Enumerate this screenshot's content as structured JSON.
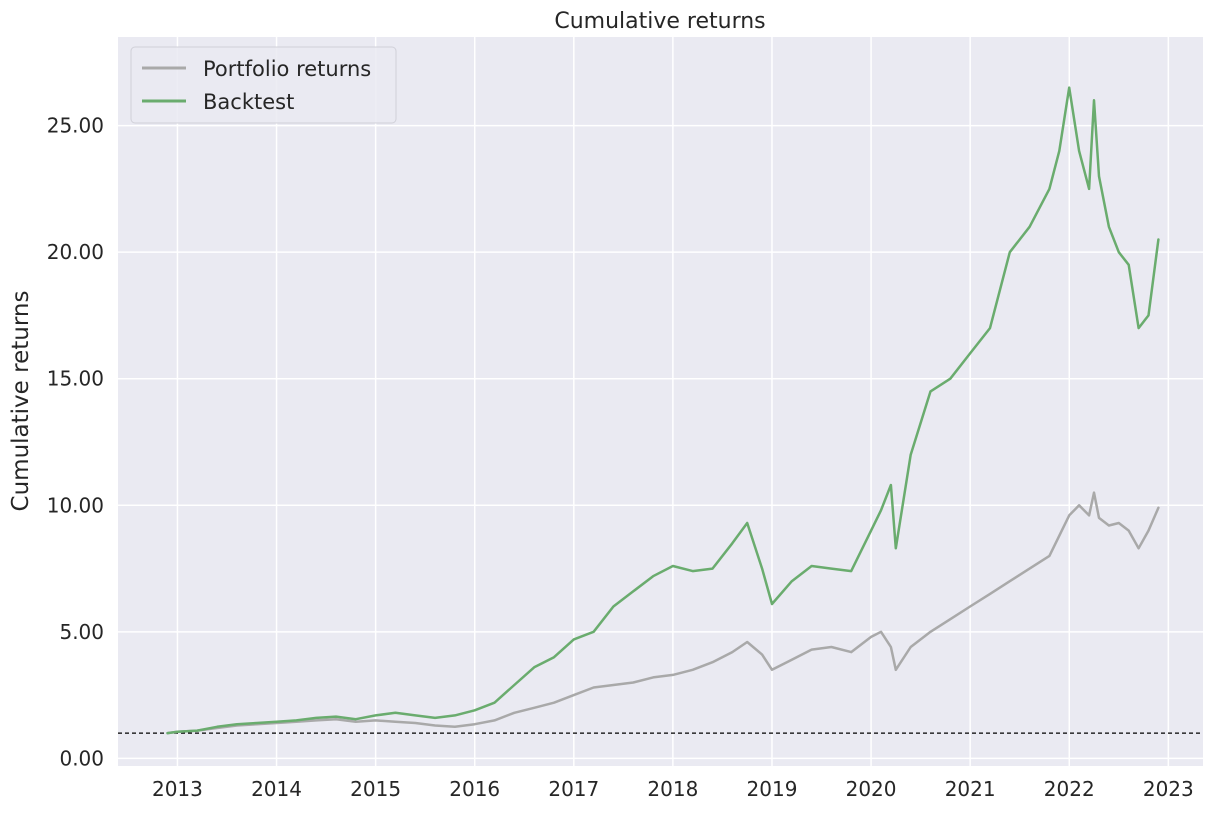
{
  "chart_data": {
    "type": "line",
    "title": "Cumulative returns",
    "xlabel": "",
    "ylabel": "Cumulative returns",
    "x_ticks": [
      "2013",
      "2014",
      "2015",
      "2016",
      "2017",
      "2018",
      "2019",
      "2020",
      "2021",
      "2022",
      "2023"
    ],
    "y_ticks": [
      "0.00",
      "5.00",
      "10.00",
      "15.00",
      "20.00",
      "25.00"
    ],
    "xlim": [
      2012.4,
      2023.35
    ],
    "ylim": [
      -0.3,
      28.5
    ],
    "grid": true,
    "legend_position": "top-left",
    "reference_line": {
      "y": 1.0,
      "style": "dashed",
      "color": "#000000"
    },
    "x": [
      2012.9,
      2013.0,
      2013.2,
      2013.4,
      2013.6,
      2013.8,
      2014.0,
      2014.2,
      2014.4,
      2014.6,
      2014.8,
      2015.0,
      2015.2,
      2015.4,
      2015.6,
      2015.8,
      2016.0,
      2016.2,
      2016.4,
      2016.6,
      2016.8,
      2017.0,
      2017.2,
      2017.4,
      2017.6,
      2017.8,
      2018.0,
      2018.2,
      2018.4,
      2018.6,
      2018.75,
      2018.9,
      2019.0,
      2019.2,
      2019.4,
      2019.6,
      2019.8,
      2020.0,
      2020.1,
      2020.2,
      2020.25,
      2020.4,
      2020.6,
      2020.8,
      2021.0,
      2021.2,
      2021.4,
      2021.6,
      2021.8,
      2021.9,
      2022.0,
      2022.1,
      2022.2,
      2022.25,
      2022.3,
      2022.4,
      2022.5,
      2022.6,
      2022.7,
      2022.8,
      2022.9
    ],
    "series": [
      {
        "name": "Portfolio returns",
        "color": "#a9a9a9",
        "values": [
          1.0,
          1.05,
          1.1,
          1.2,
          1.3,
          1.35,
          1.4,
          1.45,
          1.5,
          1.55,
          1.45,
          1.5,
          1.45,
          1.4,
          1.3,
          1.25,
          1.35,
          1.5,
          1.8,
          2.0,
          2.2,
          2.5,
          2.8,
          2.9,
          3.0,
          3.2,
          3.3,
          3.5,
          3.8,
          4.2,
          4.6,
          4.1,
          3.5,
          3.9,
          4.3,
          4.4,
          4.2,
          4.8,
          5.0,
          4.4,
          3.5,
          4.4,
          5.0,
          5.5,
          6.0,
          6.5,
          7.0,
          7.5,
          8.0,
          8.8,
          9.6,
          10.0,
          9.6,
          10.5,
          9.5,
          9.2,
          9.3,
          9.0,
          8.3,
          9.0,
          9.9
        ]
      },
      {
        "name": "Backtest",
        "color": "#6aac6e",
        "values": [
          1.0,
          1.05,
          1.1,
          1.25,
          1.35,
          1.4,
          1.45,
          1.5,
          1.6,
          1.65,
          1.55,
          1.7,
          1.8,
          1.7,
          1.6,
          1.7,
          1.9,
          2.2,
          2.9,
          3.6,
          4.0,
          4.7,
          5.0,
          6.0,
          6.6,
          7.2,
          7.6,
          7.4,
          7.5,
          8.5,
          9.3,
          7.5,
          6.1,
          7.0,
          7.6,
          7.5,
          7.4,
          9.0,
          9.8,
          10.8,
          8.3,
          12.0,
          14.5,
          15.0,
          16.0,
          17.0,
          20.0,
          21.0,
          22.5,
          24.0,
          26.5,
          24.0,
          22.5,
          26.0,
          23.0,
          21.0,
          20.0,
          19.5,
          17.0,
          17.5,
          20.5
        ]
      }
    ]
  }
}
